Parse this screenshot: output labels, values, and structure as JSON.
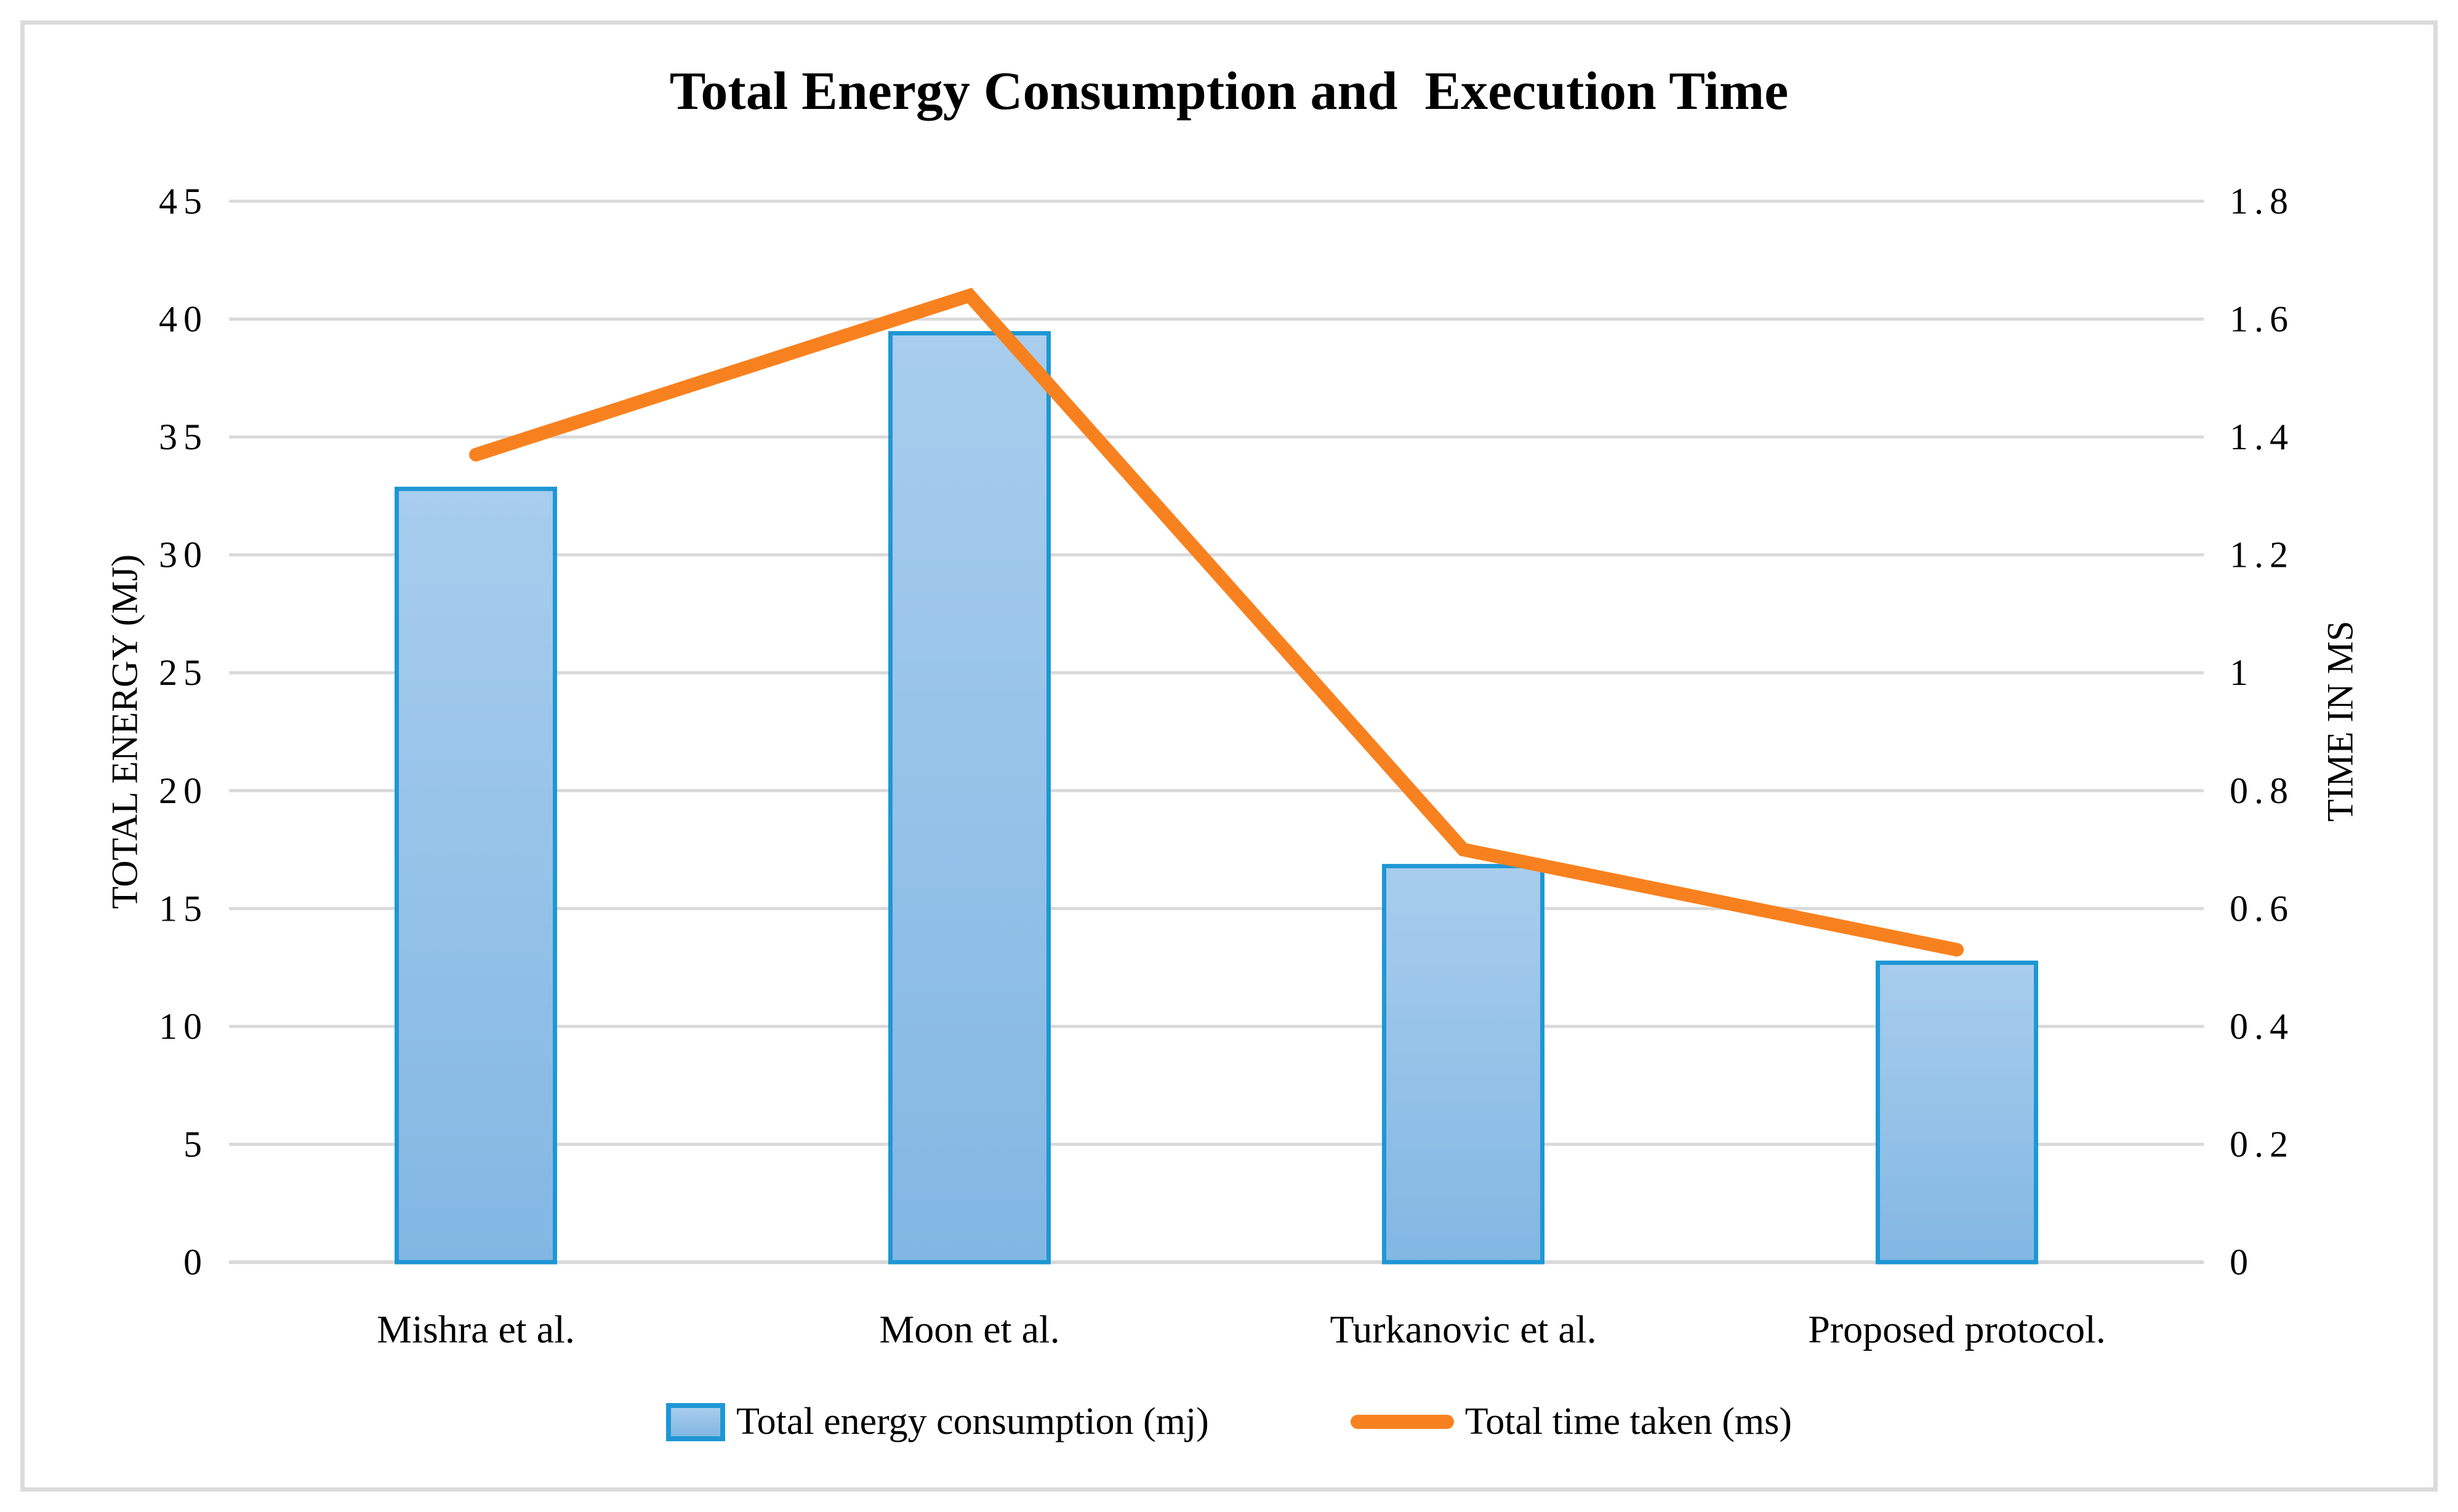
{
  "figure": {
    "title": "Total Energy Consumption and  Execution Time"
  },
  "chart_data": {
    "type": "combo-bar-line",
    "title": "Total Energy Consumption and  Execution Time",
    "categories": [
      "Mishra et al.",
      "Moon et al.",
      "Turkanovic et al.",
      "Proposed protocol."
    ],
    "series": [
      {
        "name": "Total energy consumption (mj)",
        "type": "bar",
        "axis": "left",
        "values": [
          32.8,
          39.4,
          16.8,
          12.7
        ]
      },
      {
        "name": "Total time taken (ms)",
        "type": "line",
        "axis": "right",
        "values": [
          1.37,
          1.64,
          0.7,
          0.53
        ]
      }
    ],
    "axes": {
      "left": {
        "title": "TOTAL ENERGY (MJ)",
        "min": 0,
        "max": 45,
        "ticks": [
          "45",
          "40",
          "35",
          "30",
          "25",
          "20",
          "15",
          "10",
          "5",
          "0"
        ]
      },
      "right": {
        "title": "TIME IN MS",
        "min": 0,
        "max": 1.8,
        "ticks": [
          "1.8",
          "1.6",
          "1.4",
          "1.2",
          "1",
          "0.8",
          "0.6",
          "0.4",
          "0.2",
          "0"
        ]
      }
    },
    "grid": true,
    "legend_position": "bottom",
    "colors": {
      "bar_fill_top": "#a8cded",
      "bar_fill_bottom": "#82b7e3",
      "bar_border": "#1e97d4",
      "line": "#f8811f",
      "gridline": "#d9d9d9",
      "frame": "#dbdbdb",
      "text": "#000000"
    }
  }
}
